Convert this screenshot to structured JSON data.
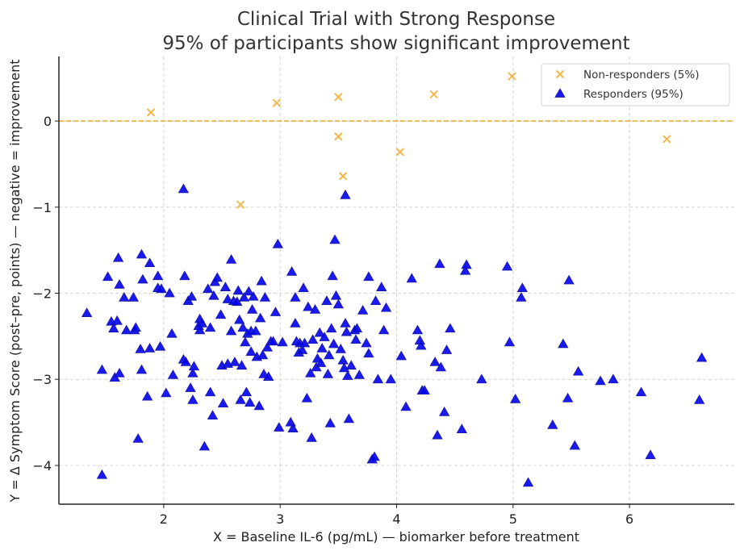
{
  "chart_data": {
    "type": "scatter",
    "title": "Clinical Trial with Strong Response",
    "subtitle": "95% of participants show significant improvement",
    "xlabel": "X = Baseline IL-6 (pg/mL) — biomarker before treatment",
    "ylabel": "Y = Δ Symptom Score (post–pre, points) — negative = improvement",
    "xlim": [
      1.1,
      6.9
    ],
    "ylim": [
      -4.45,
      0.75
    ],
    "xticks": [
      2,
      3,
      4,
      5,
      6
    ],
    "yticks": [
      0,
      -1,
      -2,
      -3,
      -4
    ],
    "xtick_labels": [
      "2",
      "3",
      "4",
      "5",
      "6"
    ],
    "ytick_labels": [
      "0",
      "−1",
      "−2",
      "−3",
      "−4"
    ],
    "grid": true,
    "legend_position": "top-right",
    "reference_line": {
      "y": 0,
      "color": "#e5a82a",
      "style": "dashed"
    },
    "series": [
      {
        "name": "Non-responders (5%)",
        "marker": "x",
        "color": "#f0b84a",
        "points": [
          [
            1.89,
            0.1
          ],
          [
            2.97,
            0.21
          ],
          [
            3.5,
            0.28
          ],
          [
            4.32,
            0.31
          ],
          [
            4.99,
            0.52
          ],
          [
            3.5,
            -0.18
          ],
          [
            4.03,
            -0.36
          ],
          [
            3.54,
            -0.64
          ],
          [
            2.66,
            -0.97
          ],
          [
            6.32,
            -0.21
          ]
        ]
      },
      {
        "name": "Responders (95%)",
        "marker": "triangle",
        "color": "#0000ee",
        "points": [
          [
            2.17,
            -0.79
          ],
          [
            3.56,
            -0.86
          ],
          [
            3.47,
            -1.38
          ],
          [
            2.98,
            -1.43
          ],
          [
            1.34,
            -2.23
          ],
          [
            1.47,
            -2.89
          ],
          [
            1.47,
            -4.11
          ],
          [
            1.52,
            -1.81
          ],
          [
            1.55,
            -2.33
          ],
          [
            1.57,
            -2.41
          ],
          [
            1.58,
            -2.98
          ],
          [
            1.6,
            -2.32
          ],
          [
            1.61,
            -1.59
          ],
          [
            1.62,
            -1.9
          ],
          [
            1.62,
            -2.93
          ],
          [
            1.66,
            -2.05
          ],
          [
            1.68,
            -2.43
          ],
          [
            1.74,
            -2.05
          ],
          [
            1.75,
            -2.43
          ],
          [
            1.76,
            -2.4
          ],
          [
            1.78,
            -3.69
          ],
          [
            1.8,
            -2.65
          ],
          [
            1.81,
            -1.55
          ],
          [
            1.81,
            -2.89
          ],
          [
            1.82,
            -1.84
          ],
          [
            1.86,
            -3.2
          ],
          [
            1.88,
            -2.64
          ],
          [
            1.88,
            -1.65
          ],
          [
            1.95,
            -1.8
          ],
          [
            1.95,
            -1.94
          ],
          [
            1.97,
            -2.62
          ],
          [
            1.98,
            -1.95
          ],
          [
            2.02,
            -3.16
          ],
          [
            2.05,
            -2.0
          ],
          [
            2.07,
            -2.47
          ],
          [
            2.08,
            -2.95
          ],
          [
            2.17,
            -2.77
          ],
          [
            2.18,
            -1.8
          ],
          [
            2.19,
            -2.8
          ],
          [
            2.21,
            -2.09
          ],
          [
            2.23,
            -3.1
          ],
          [
            2.24,
            -2.04
          ],
          [
            2.25,
            -3.24
          ],
          [
            2.25,
            -2.93
          ],
          [
            2.26,
            -2.85
          ],
          [
            2.3,
            -2.38
          ],
          [
            2.31,
            -2.3
          ],
          [
            2.31,
            -2.43
          ],
          [
            2.33,
            -2.35
          ],
          [
            2.35,
            -3.78
          ],
          [
            2.38,
            -1.95
          ],
          [
            2.4,
            -2.4
          ],
          [
            2.4,
            -3.15
          ],
          [
            2.42,
            -3.42
          ],
          [
            2.43,
            -2.03
          ],
          [
            2.44,
            -1.87
          ],
          [
            2.46,
            -1.82
          ],
          [
            2.49,
            -2.25
          ],
          [
            2.5,
            -2.84
          ],
          [
            2.51,
            -3.28
          ],
          [
            2.53,
            -1.93
          ],
          [
            2.55,
            -2.07
          ],
          [
            2.55,
            -2.82
          ],
          [
            2.58,
            -1.61
          ],
          [
            2.58,
            -2.44
          ],
          [
            2.6,
            -2.09
          ],
          [
            2.61,
            -2.8
          ],
          [
            2.63,
            -2.1
          ],
          [
            2.64,
            -1.97
          ],
          [
            2.65,
            -2.31
          ],
          [
            2.66,
            -3.24
          ],
          [
            2.67,
            -2.84
          ],
          [
            2.68,
            -2.4
          ],
          [
            2.69,
            -2.05
          ],
          [
            2.7,
            -2.57
          ],
          [
            2.71,
            -3.15
          ],
          [
            2.72,
            -2.47
          ],
          [
            2.73,
            -1.98
          ],
          [
            2.74,
            -3.27
          ],
          [
            2.75,
            -2.44
          ],
          [
            2.75,
            -2.68
          ],
          [
            2.76,
            -2.19
          ],
          [
            2.77,
            -2.04
          ],
          [
            2.79,
            -2.44
          ],
          [
            2.8,
            -2.74
          ],
          [
            2.82,
            -3.31
          ],
          [
            2.83,
            -2.29
          ],
          [
            2.84,
            -1.86
          ],
          [
            2.85,
            -2.72
          ],
          [
            2.86,
            -2.94
          ],
          [
            2.87,
            -2.05
          ],
          [
            2.89,
            -2.63
          ],
          [
            2.9,
            -2.97
          ],
          [
            2.92,
            -2.56
          ],
          [
            2.94,
            -2.56
          ],
          [
            2.96,
            -2.22
          ],
          [
            2.99,
            -3.56
          ],
          [
            3.02,
            -2.57
          ],
          [
            3.09,
            -3.5
          ],
          [
            3.1,
            -1.75
          ],
          [
            3.11,
            -3.57
          ],
          [
            3.13,
            -2.05
          ],
          [
            3.13,
            -2.35
          ],
          [
            3.14,
            -2.56
          ],
          [
            3.16,
            -2.69
          ],
          [
            3.17,
            -2.58
          ],
          [
            3.19,
            -2.66
          ],
          [
            3.2,
            -1.94
          ],
          [
            3.21,
            -2.58
          ],
          [
            3.23,
            -3.22
          ],
          [
            3.24,
            -2.16
          ],
          [
            3.26,
            -2.93
          ],
          [
            3.27,
            -3.68
          ],
          [
            3.28,
            -2.54
          ],
          [
            3.3,
            -2.19
          ],
          [
            3.31,
            -2.86
          ],
          [
            3.32,
            -2.76
          ],
          [
            3.34,
            -2.46
          ],
          [
            3.35,
            -2.81
          ],
          [
            3.36,
            -2.64
          ],
          [
            3.38,
            -2.51
          ],
          [
            3.4,
            -2.09
          ],
          [
            3.41,
            -2.94
          ],
          [
            3.42,
            -2.72
          ],
          [
            3.43,
            -3.51
          ],
          [
            3.44,
            -2.41
          ],
          [
            3.45,
            -1.8
          ],
          [
            3.46,
            -2.59
          ],
          [
            3.48,
            -2.03
          ],
          [
            3.5,
            -2.13
          ],
          [
            3.52,
            -2.65
          ],
          [
            3.54,
            -2.78
          ],
          [
            3.55,
            -2.87
          ],
          [
            3.56,
            -2.35
          ],
          [
            3.57,
            -2.45
          ],
          [
            3.58,
            -2.96
          ],
          [
            3.59,
            -3.46
          ],
          [
            3.61,
            -2.84
          ],
          [
            3.64,
            -2.43
          ],
          [
            3.65,
            -2.54
          ],
          [
            3.66,
            -2.41
          ],
          [
            3.68,
            -2.95
          ],
          [
            3.71,
            -2.2
          ],
          [
            3.74,
            -2.58
          ],
          [
            3.76,
            -1.81
          ],
          [
            3.76,
            -2.7
          ],
          [
            3.79,
            -3.93
          ],
          [
            3.81,
            -3.9
          ],
          [
            3.82,
            -2.09
          ],
          [
            3.84,
            -3.0
          ],
          [
            3.87,
            -1.93
          ],
          [
            3.89,
            -2.43
          ],
          [
            3.91,
            -2.17
          ],
          [
            3.95,
            -3.0
          ],
          [
            4.04,
            -2.73
          ],
          [
            4.08,
            -3.32
          ],
          [
            4.13,
            -1.83
          ],
          [
            4.18,
            -2.43
          ],
          [
            4.2,
            -2.55
          ],
          [
            4.21,
            -2.61
          ],
          [
            4.22,
            -3.13
          ],
          [
            4.24,
            -3.13
          ],
          [
            4.33,
            -2.8
          ],
          [
            4.35,
            -3.65
          ],
          [
            4.37,
            -1.66
          ],
          [
            4.38,
            -2.86
          ],
          [
            4.41,
            -3.38
          ],
          [
            4.43,
            -2.66
          ],
          [
            4.46,
            -2.41
          ],
          [
            4.56,
            -3.58
          ],
          [
            4.59,
            -1.74
          ],
          [
            4.6,
            -1.67
          ],
          [
            4.73,
            -3.0
          ],
          [
            4.95,
            -1.69
          ],
          [
            4.97,
            -2.57
          ],
          [
            5.02,
            -3.23
          ],
          [
            5.07,
            -2.05
          ],
          [
            5.08,
            -1.94
          ],
          [
            5.13,
            -4.2
          ],
          [
            5.34,
            -3.53
          ],
          [
            5.43,
            -2.59
          ],
          [
            5.47,
            -3.22
          ],
          [
            5.48,
            -1.85
          ],
          [
            5.53,
            -3.77
          ],
          [
            5.56,
            -2.91
          ],
          [
            5.75,
            -3.02
          ],
          [
            5.86,
            -3.0
          ],
          [
            6.1,
            -3.15
          ],
          [
            6.18,
            -3.88
          ],
          [
            6.6,
            -3.24
          ],
          [
            6.62,
            -2.75
          ]
        ]
      }
    ]
  }
}
